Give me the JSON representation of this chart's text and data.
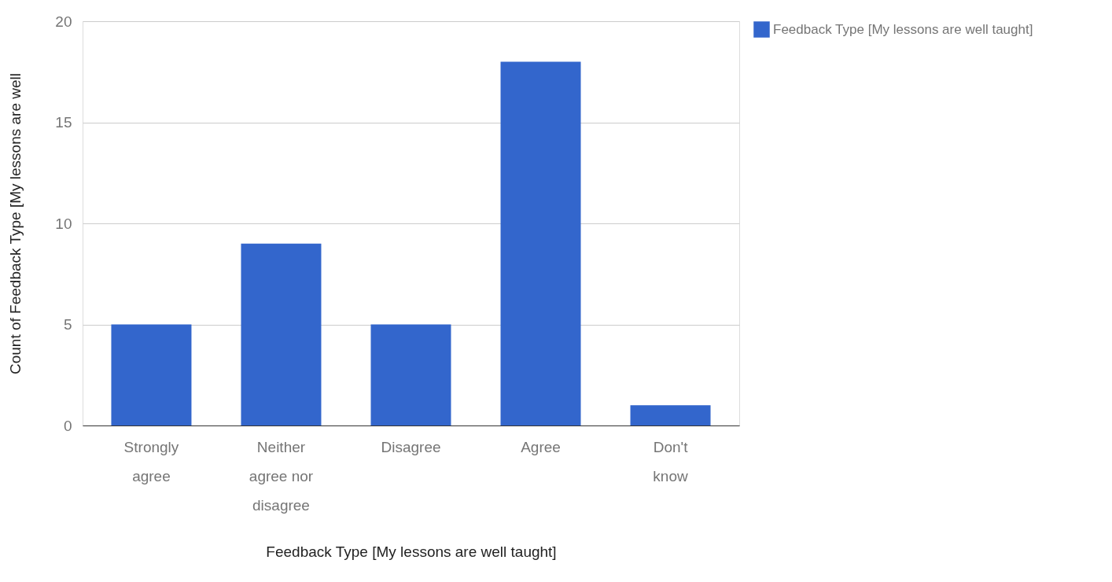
{
  "chart_data": {
    "type": "bar",
    "xlabel": "Feedback Type [My lessons are well taught]",
    "ylabel": "Count of Feedback Type [My lessons are well",
    "categories": [
      "Strongly agree",
      "Neither agree nor disagree",
      "Disagree",
      "Agree",
      "Don't know"
    ],
    "series": [
      {
        "name": "Feedback Type [My lessons are well taught]",
        "color": "#3366cc",
        "values": [
          5,
          9,
          5,
          18,
          1
        ]
      }
    ],
    "ylim": [
      0,
      20
    ],
    "yticks": [
      0,
      5,
      10,
      15,
      20
    ],
    "grid": "y",
    "legend": "top right"
  }
}
